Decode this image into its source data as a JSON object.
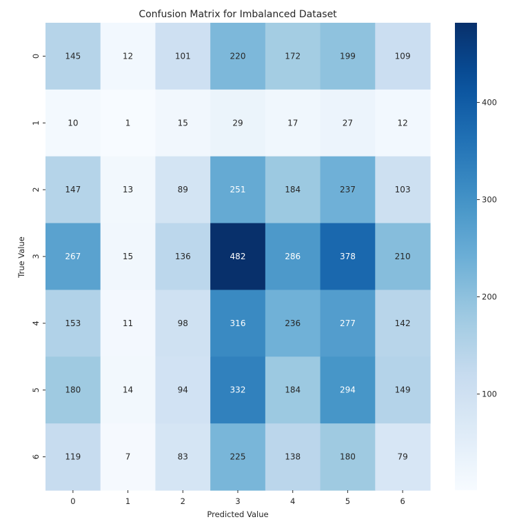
{
  "chart_data": {
    "type": "heatmap",
    "title": "Confusion Matrix for Imbalanced Dataset",
    "xlabel": "Predicted Value",
    "ylabel": "True Value",
    "x_categories": [
      "0",
      "1",
      "2",
      "3",
      "4",
      "5",
      "6"
    ],
    "y_categories": [
      "0",
      "1",
      "2",
      "3",
      "4",
      "5",
      "6"
    ],
    "values": [
      [
        145,
        12,
        101,
        220,
        172,
        199,
        109
      ],
      [
        10,
        1,
        15,
        29,
        17,
        27,
        12
      ],
      [
        147,
        13,
        89,
        251,
        184,
        237,
        103
      ],
      [
        267,
        15,
        136,
        482,
        286,
        378,
        210
      ],
      [
        153,
        11,
        98,
        316,
        236,
        277,
        142
      ],
      [
        180,
        14,
        94,
        332,
        184,
        294,
        149
      ],
      [
        119,
        7,
        83,
        225,
        138,
        180,
        79
      ]
    ],
    "colormap": "Blues",
    "color_low": "#f7fbff",
    "color_high": "#08306b",
    "text_color_dark": "#262626",
    "text_color_light": "#ffffff",
    "colorbar": {
      "range": [
        1,
        482
      ],
      "ticks": [
        100,
        200,
        300,
        400
      ]
    },
    "grid": false,
    "legend": "colorbar-right"
  }
}
